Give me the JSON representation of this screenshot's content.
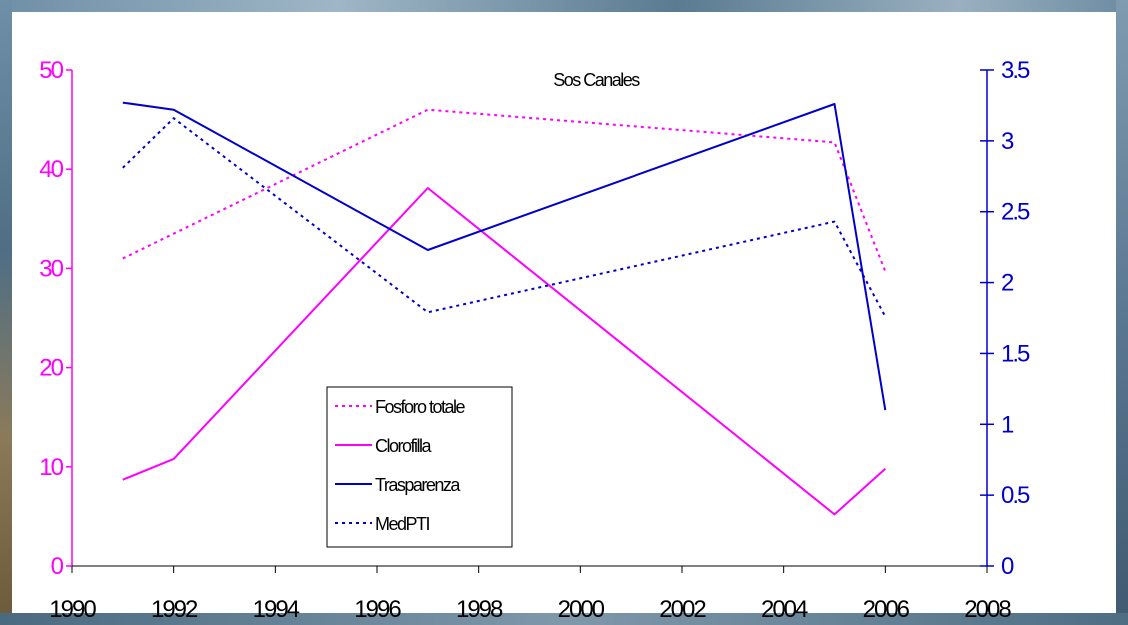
{
  "chart_data": {
    "type": "line",
    "title": "Sos Canales",
    "xlabel": "",
    "ylabel_left": "",
    "ylabel_right": "",
    "xlim": [
      1990,
      2008
    ],
    "x_ticks": [
      "1990",
      "1992",
      "1994",
      "1996",
      "1998",
      "2000",
      "2002",
      "2004",
      "2006",
      "2008"
    ],
    "ylim_left": [
      0,
      50
    ],
    "y_ticks_left": [
      "0",
      "10",
      "20",
      "30",
      "40",
      "50"
    ],
    "ylim_right": [
      0,
      3.5
    ],
    "y_ticks_right": [
      "0",
      "0.5",
      "1",
      "1.5",
      "2",
      "2.5",
      "3",
      "3.5"
    ],
    "grid": false,
    "legend_position": "lower-center",
    "colors": {
      "left_axis": "#ff00ff",
      "right_axis": "#0000cc",
      "magenta": "#ff00ff",
      "blue": "#0000cc"
    },
    "series": [
      {
        "name": "Fosforo totale",
        "axis": "left",
        "style": "dotted",
        "color": "#ff00ff",
        "x": [
          1991,
          1997,
          2005,
          2006
        ],
        "y": [
          31,
          46,
          42.7,
          29.7
        ]
      },
      {
        "name": "Clorofilla",
        "axis": "left",
        "style": "solid",
        "color": "#ff00ff",
        "x": [
          1991,
          1992,
          1997,
          2005,
          2006
        ],
        "y": [
          8.7,
          10.8,
          38.1,
          5.2,
          9.8
        ]
      },
      {
        "name": "Trasparenza",
        "axis": "right",
        "style": "solid",
        "color": "#0000cc",
        "x": [
          1991,
          1992,
          1997,
          2005,
          2006
        ],
        "y": [
          3.27,
          3.22,
          2.23,
          3.26,
          1.1
        ]
      },
      {
        "name": "MedPTI",
        "axis": "right",
        "style": "dotted",
        "color": "#0000cc",
        "x": [
          1991,
          1992,
          1997,
          2005,
          2006
        ],
        "y": [
          2.81,
          3.16,
          1.79,
          2.43,
          1.76
        ]
      }
    ]
  }
}
